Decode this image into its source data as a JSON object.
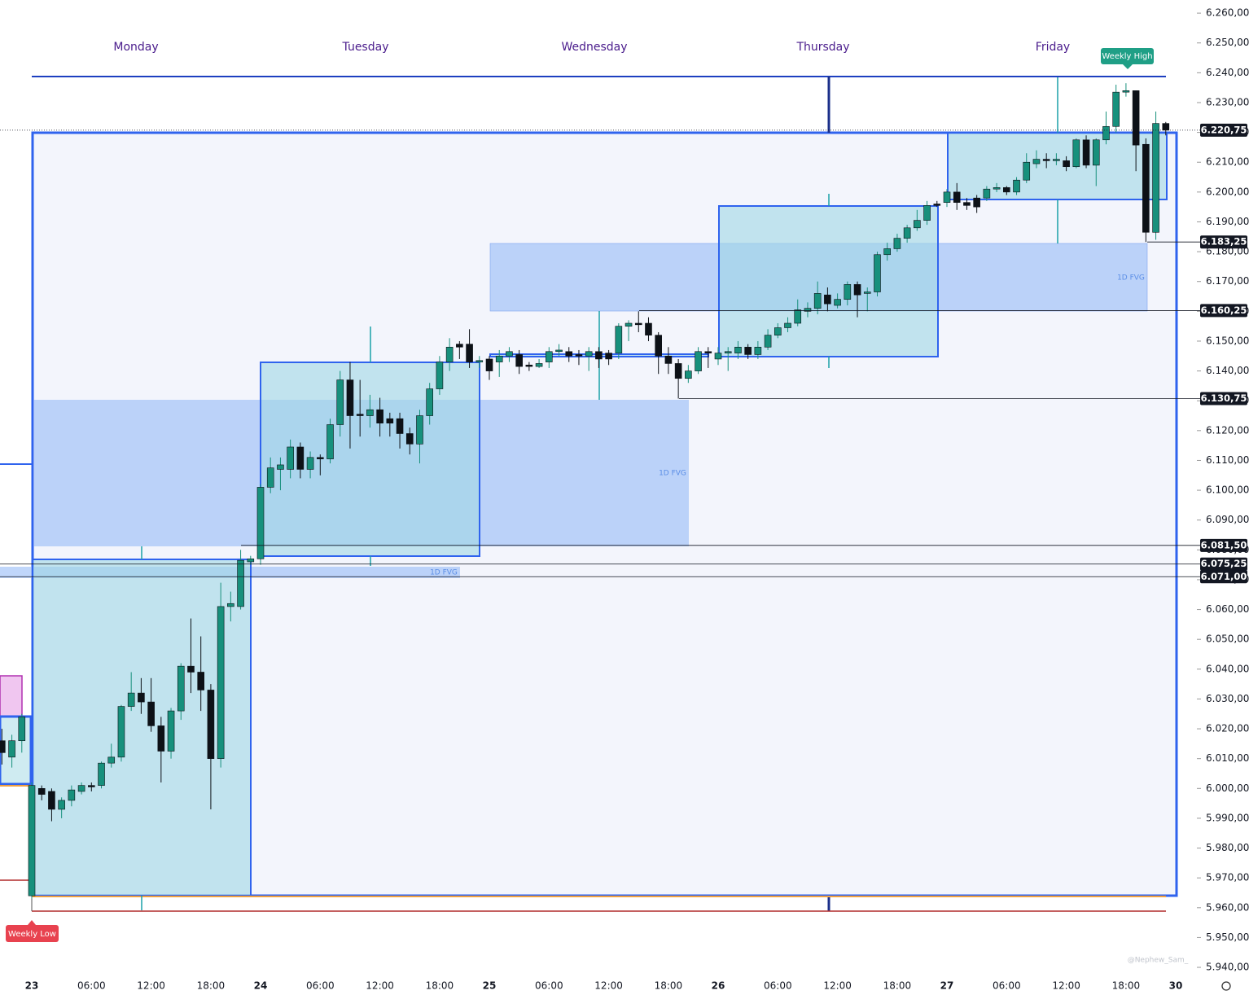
{
  "chart_data": {
    "type": "candlestick",
    "day_labels": [
      "Monday",
      "Tuesday",
      "Wednesday",
      "Thursday",
      "Friday"
    ],
    "annotations": {
      "weekly_high": "Weekly High",
      "weekly_low": "Weekly Low",
      "fvg": [
        "1D FVG",
        "1D FVG",
        "1D FVG"
      ],
      "watermark": "@Nephew_Sam_"
    },
    "up_color": "#17907c",
    "down_color": "#0d1117",
    "categories": [
      null,
      null,
      null,
      "23",
      null,
      null,
      null,
      null,
      null,
      "06:00",
      null,
      null,
      null,
      null,
      null,
      "12:00",
      null,
      null,
      null,
      null,
      null,
      "18:00",
      null,
      null,
      null,
      null,
      "24",
      null,
      null,
      null,
      null,
      null,
      "06:00",
      null,
      null,
      null,
      null,
      null,
      "12:00",
      null,
      null,
      null,
      null,
      null,
      "18:00",
      null,
      null,
      null,
      null,
      "25",
      null,
      null,
      null,
      null,
      null,
      "06:00",
      null,
      null,
      null,
      null,
      null,
      "12:00",
      null,
      null,
      null,
      null,
      null,
      "18:00",
      null,
      null,
      null,
      null,
      "26",
      null,
      null,
      null,
      null,
      null,
      "06:00",
      null,
      null,
      null,
      null,
      null,
      "12:00",
      null,
      null,
      null,
      null,
      null,
      "18:00",
      null,
      null,
      null,
      null,
      "27",
      null,
      null,
      null,
      null,
      null,
      "06:00",
      null,
      null,
      null,
      null,
      null,
      "12:00",
      null,
      null,
      null,
      null,
      null,
      "18:00",
      null,
      null,
      null,
      null,
      "30"
    ],
    "open": [
      6016,
      6010.5,
      6016,
      5964,
      6000,
      5999,
      5993,
      5996,
      5999,
      6001,
      6001,
      6008.5,
      6010.5,
      6027.5,
      6032,
      6029,
      6021,
      6012.5,
      6026,
      6041,
      6039,
      6033,
      6010,
      6061,
      6061,
      6076,
      6077,
      6101,
      6107,
      6107,
      6114.5,
      6107,
      6111,
      6110.5,
      6122,
      6137,
      6125.5,
      6125,
      6127,
      6124,
      6124,
      6119,
      6115.5,
      6125,
      6134,
      6143,
      6149,
      6149,
      6143,
      6144,
      6143,
      6145,
      6145.5,
      6142,
      6141.5,
      6143,
      6146.5,
      6146.5,
      6145.5,
      6145,
      6146.5,
      6146,
      6146,
      6155,
      6156,
      6156,
      6152,
      6145,
      6142.5,
      6137.5,
      6140,
      6146.5,
      6144,
      6146,
      6146,
      6148,
      6145.5,
      6148,
      6152,
      6154.5,
      6156,
      6160,
      6161,
      6165.5,
      6162,
      6164,
      6169,
      6166,
      6166.5,
      6179,
      6181,
      6184.5,
      6188,
      6190.5,
      6196,
      6196.5,
      6200,
      6196.5,
      6198,
      6198,
      6201,
      6201.5,
      6200,
      6204,
      6209.5,
      6211,
      6210.5,
      6210.5,
      6208.5,
      6217.5,
      6209,
      6217.5,
      6222,
      6233.5,
      6234,
      6216,
      6186.5,
      6223,
      null
    ],
    "high": [
      6020,
      6018,
      6025,
      6002,
      6001,
      6000,
      5997,
      6001,
      6002,
      6002,
      6009,
      6015,
      6028,
      6039,
      6037,
      6037,
      6024,
      6027,
      6042,
      6057,
      6051,
      6035,
      6069,
      6066,
      6080,
      6078,
      6102,
      6111,
      6111,
      6117,
      6116,
      6113,
      6112,
      6124,
      6140,
      6143,
      6137,
      6132,
      6131,
      6126,
      6126,
      6121,
      6127,
      6136,
      6145,
      6151,
      6150,
      6154,
      6145,
      6145,
      6147,
      6148,
      6147,
      6143,
      6144,
      6148,
      6149,
      6148,
      6147,
      6148,
      6148,
      6147,
      6156,
      6157,
      6160,
      6158,
      6153,
      6148,
      6144,
      6142,
      6148,
      6148,
      6148,
      6148,
      6150,
      6149,
      6150,
      6154,
      6156,
      6158,
      6164,
      6163,
      6170,
      6168,
      6166,
      6170,
      6170,
      6168,
      6180,
      6183,
      6186,
      6189,
      6194,
      6197,
      6197,
      6201,
      6203,
      6198,
      6199,
      6202,
      6203,
      6202,
      6205,
      6213,
      6214,
      6213,
      6213,
      6212,
      6218,
      6219,
      6218,
      6227,
      6236,
      6236.5,
      6234,
      6218,
      6227,
      6223.5,
      null
    ],
    "low": [
      6008,
      6007,
      6012,
      5963,
      5996,
      5989,
      5990,
      5994,
      5998,
      5999,
      6000,
      6007,
      6009,
      6026,
      6025,
      6019,
      6002,
      6010,
      6023,
      6032,
      6026,
      5993,
      6007,
      6056,
      6060,
      6075,
      6075,
      6099,
      6100,
      6104,
      6104,
      6104,
      6105,
      6109,
      6118,
      6114,
      6118,
      6121,
      6118,
      6118,
      6114,
      6112,
      6109,
      6122,
      6132,
      6140,
      6144,
      6141,
      6141,
      6137,
      6138,
      6143,
      6139,
      6140,
      6141,
      6141,
      6145,
      6143,
      6142,
      6140,
      6141,
      6142,
      6144,
      6150,
      6153,
      6150,
      6139,
      6139,
      6130.75,
      6136,
      6139,
      6141,
      6142,
      6140,
      6144,
      6144,
      6144,
      6147,
      6151,
      6153,
      6155,
      6158,
      6159,
      6160,
      6161,
      6162,
      6158,
      6160,
      6165,
      6177,
      6180,
      6183,
      6187,
      6189,
      6195,
      6195,
      6194,
      6194,
      6193,
      6197,
      6200,
      6199,
      6199,
      6203,
      6208,
      6208,
      6209,
      6207,
      6208,
      6208,
      6202,
      6216,
      6220,
      6232,
      6207,
      6183.25,
      6184,
      6219,
      null
    ],
    "close": [
      6012,
      6016,
      6024,
      6001,
      5998,
      5993,
      5996,
      5999.5,
      6001,
      6000.5,
      6008.5,
      6010.5,
      6027.5,
      6032,
      6029,
      6021,
      6012.5,
      6026,
      6041,
      6039,
      6033,
      6010,
      6061,
      6062,
      6076.5,
      6077,
      6101,
      6107.5,
      6108.5,
      6114.5,
      6107,
      6111,
      6110.5,
      6122,
      6137,
      6125,
      6125,
      6127,
      6122.5,
      6122.5,
      6119,
      6115.5,
      6125,
      6134,
      6143,
      6148,
      6148,
      6143,
      6143.5,
      6140,
      6145,
      6146.5,
      6141.5,
      6141.5,
      6142.5,
      6146.5,
      6147,
      6145,
      6145,
      6146.5,
      6144,
      6144,
      6155,
      6156,
      6155.5,
      6152,
      6145,
      6142.5,
      6137.5,
      6140,
      6146.5,
      6146,
      6146,
      6146.5,
      6148,
      6145.5,
      6148,
      6152,
      6154.5,
      6156,
      6160.5,
      6161,
      6166,
      6162.5,
      6164,
      6169,
      6165.5,
      6166.5,
      6179,
      6181,
      6184.5,
      6188,
      6190.5,
      6195.5,
      6195.5,
      6200,
      6196.5,
      6195.5,
      6195,
      6201,
      6201.5,
      6200,
      6204,
      6210,
      6211,
      6210.5,
      6211,
      6208.5,
      6217.5,
      6209,
      6217.5,
      6222,
      6233.5,
      6234,
      6215.75,
      6186.5,
      6223,
      6220.75,
      null
    ],
    "ylim": [
      5938.1,
      6264.4
    ],
    "yticks": [
      {
        "value": 6260,
        "label": "6.260,00"
      },
      {
        "value": 6250,
        "label": "6.250,00"
      },
      {
        "value": 6240,
        "label": "6.240,00"
      },
      {
        "value": 6230,
        "label": "6.230,00"
      },
      {
        "value": 6220,
        "label": "6.220,00"
      },
      {
        "value": 6210,
        "label": "6.210,00"
      },
      {
        "value": 6200,
        "label": "6.200,00"
      },
      {
        "value": 6190,
        "label": "6.190,00"
      },
      {
        "value": 6180,
        "label": "6.180,00"
      },
      {
        "value": 6170,
        "label": "6.170,00"
      },
      {
        "value": 6160,
        "label": "6.160,00"
      },
      {
        "value": 6150,
        "label": "6.150,00"
      },
      {
        "value": 6140,
        "label": "6.140,00"
      },
      {
        "value": 6130,
        "label": "6.130,00"
      },
      {
        "value": 6120,
        "label": "6.120,00"
      },
      {
        "value": 6110,
        "label": "6.110,00"
      },
      {
        "value": 6100,
        "label": "6.100,00"
      },
      {
        "value": 6090,
        "label": "6.090,00"
      },
      {
        "value": 6080,
        "label": "6.080,00"
      },
      {
        "value": 6070,
        "label": "6.070,00"
      },
      {
        "value": 6060,
        "label": "6.060,00"
      },
      {
        "value": 6050,
        "label": "6.050,00"
      },
      {
        "value": 6040,
        "label": "6.040,00"
      },
      {
        "value": 6030,
        "label": "6.030,00"
      },
      {
        "value": 6020,
        "label": "6.020,00"
      },
      {
        "value": 6010,
        "label": "6.010,00"
      },
      {
        "value": 6000,
        "label": "6.000,00"
      },
      {
        "value": 5990,
        "label": "5.990,00"
      },
      {
        "value": 5980,
        "label": "5.980,00"
      },
      {
        "value": 5970,
        "label": "5.970,00"
      },
      {
        "value": 5960,
        "label": "5.960,00"
      },
      {
        "value": 5950,
        "label": "5.950,00"
      },
      {
        "value": 5940,
        "label": "5.940,00"
      }
    ],
    "levels": [
      {
        "value": 6220.75,
        "label": "6.220,75"
      },
      {
        "value": 6183.25,
        "label": "6.183,25"
      },
      {
        "value": 6160.25,
        "label": "6.160,25"
      },
      {
        "value": 6130.75,
        "label": "6.130,75"
      },
      {
        "value": 6081.5,
        "label": "6.081,50"
      },
      {
        "value": 6075.25,
        "label": "6.075,25"
      },
      {
        "value": 6071,
        "label": "6.071,00"
      }
    ],
    "grid": false
  }
}
